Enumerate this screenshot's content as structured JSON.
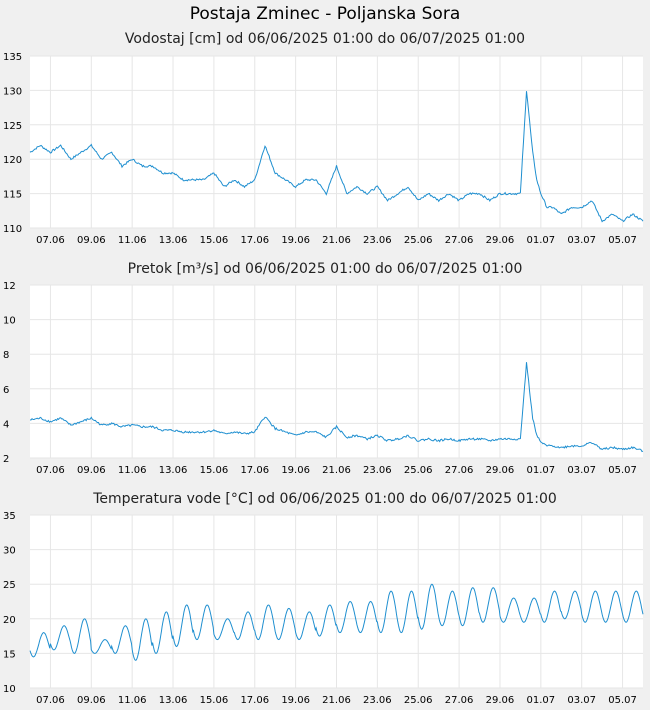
{
  "page_title": "Postaja Zminec - Poljanska Sora",
  "line_color": "#1f8fd0",
  "chart_data": [
    {
      "type": "line",
      "title": "Vodostaj [cm] od 06/06/2025 01:00 do 06/07/2025 01:00",
      "ylim": [
        110,
        135
      ],
      "yticks": [
        "110",
        "115",
        "120",
        "125",
        "130",
        "135"
      ],
      "xticks": [
        "07.06",
        "09.06",
        "11.06",
        "13.06",
        "15.06",
        "17.06",
        "19.06",
        "21.06",
        "23.06",
        "25.06",
        "27.06",
        "29.06",
        "01.07",
        "03.07",
        "05.07"
      ],
      "xlim_days": [
        0,
        30
      ],
      "grid": true,
      "series": [
        {
          "x": [
            0,
            0.5,
            1,
            1.5,
            2,
            2.5,
            3,
            3.5,
            4,
            4.5,
            5,
            5.5,
            6,
            6.5,
            7,
            7.5,
            8,
            8.5,
            9,
            9.5,
            10,
            10.5,
            11,
            11.5,
            12,
            12.5,
            13,
            13.5,
            14,
            14.5,
            15,
            15.5,
            16,
            16.5,
            17,
            17.5,
            18,
            18.5,
            19,
            19.5,
            20,
            20.5,
            21,
            21.5,
            22,
            22.5,
            23,
            23.5,
            24,
            24.3,
            24.6,
            24.8,
            25,
            25.3,
            25.6,
            26,
            26.5,
            27,
            27.5,
            28,
            28.5,
            29,
            29.5,
            30
          ],
          "values": [
            121,
            122,
            121,
            122,
            120,
            121,
            122,
            120,
            121,
            119,
            120,
            119,
            119,
            118,
            118,
            117,
            117,
            117,
            118,
            116,
            117,
            116,
            117,
            122,
            118,
            117,
            116,
            117,
            117,
            115,
            119,
            115,
            116,
            115,
            116,
            114,
            115,
            116,
            114,
            115,
            114,
            115,
            114,
            115,
            115,
            114,
            115,
            115,
            115,
            130,
            121,
            117,
            115,
            113,
            113,
            112,
            113,
            113,
            114,
            111,
            112,
            111,
            112,
            111
          ]
        }
      ]
    },
    {
      "type": "line",
      "title": "Pretok [m³/s] od 06/06/2025 01:00 do 06/07/2025 01:00",
      "ylim": [
        2,
        12
      ],
      "yticks": [
        "2",
        "4",
        "6",
        "8",
        "10",
        "12"
      ],
      "xticks": [
        "07.06",
        "09.06",
        "11.06",
        "13.06",
        "15.06",
        "17.06",
        "19.06",
        "21.06",
        "23.06",
        "25.06",
        "27.06",
        "29.06",
        "01.07",
        "03.07",
        "05.07"
      ],
      "xlim_days": [
        0,
        30
      ],
      "grid": true,
      "series": [
        {
          "x": [
            0,
            0.5,
            1,
            1.5,
            2,
            2.5,
            3,
            3.5,
            4,
            4.5,
            5,
            5.5,
            6,
            6.5,
            7,
            7.5,
            8,
            8.5,
            9,
            9.5,
            10,
            10.5,
            11,
            11.5,
            12,
            12.5,
            13,
            13.5,
            14,
            14.5,
            15,
            15.5,
            16,
            16.5,
            17,
            17.5,
            18,
            18.5,
            19,
            19.5,
            20,
            20.5,
            21,
            21.5,
            22,
            22.5,
            23,
            23.5,
            24,
            24.3,
            24.6,
            24.8,
            25,
            25.3,
            25.6,
            26,
            26.5,
            27,
            27.5,
            28,
            28.5,
            29,
            29.5,
            30
          ],
          "values": [
            4.2,
            4.3,
            4.1,
            4.3,
            3.9,
            4.1,
            4.3,
            3.9,
            4.0,
            3.8,
            3.9,
            3.8,
            3.8,
            3.6,
            3.6,
            3.5,
            3.5,
            3.5,
            3.6,
            3.4,
            3.5,
            3.4,
            3.5,
            4.4,
            3.7,
            3.5,
            3.3,
            3.5,
            3.5,
            3.2,
            3.8,
            3.2,
            3.3,
            3.1,
            3.3,
            3.0,
            3.1,
            3.3,
            3.0,
            3.1,
            3.0,
            3.1,
            3.0,
            3.1,
            3.1,
            3.0,
            3.1,
            3.1,
            3.1,
            7.5,
            4.3,
            3.3,
            2.9,
            2.7,
            2.7,
            2.6,
            2.7,
            2.7,
            2.9,
            2.5,
            2.6,
            2.5,
            2.6,
            2.4
          ]
        }
      ]
    },
    {
      "type": "line",
      "title": "Temperatura vode [°C] od 06/06/2025 01:00 do 06/07/2025 01:00",
      "ylim": [
        10,
        35
      ],
      "yticks": [
        "10",
        "15",
        "20",
        "25",
        "30",
        "35"
      ],
      "xticks": [
        "07.06",
        "09.06",
        "11.06",
        "13.06",
        "15.06",
        "17.06",
        "19.06",
        "21.06",
        "23.06",
        "25.06",
        "27.06",
        "29.06",
        "01.07",
        "03.07",
        "05.07"
      ],
      "xlim_days": [
        0,
        30
      ],
      "grid": true,
      "daily_min": [
        14.5,
        15.5,
        15,
        15,
        15,
        14,
        15,
        16,
        17,
        17,
        17,
        17,
        17,
        17,
        17.5,
        18,
        18,
        18,
        18,
        18.5,
        19,
        19,
        19.5,
        19.5,
        19.5,
        19.5,
        20,
        19.5,
        19.5,
        19.5,
        19.5
      ],
      "daily_max": [
        18,
        19,
        20,
        17,
        19,
        20,
        21,
        22,
        22,
        20,
        21,
        22,
        21.5,
        21,
        22,
        22.5,
        22.5,
        24,
        24,
        25,
        24,
        24.5,
        24.5,
        23,
        23,
        24,
        24,
        24,
        24,
        24,
        24
      ]
    }
  ]
}
